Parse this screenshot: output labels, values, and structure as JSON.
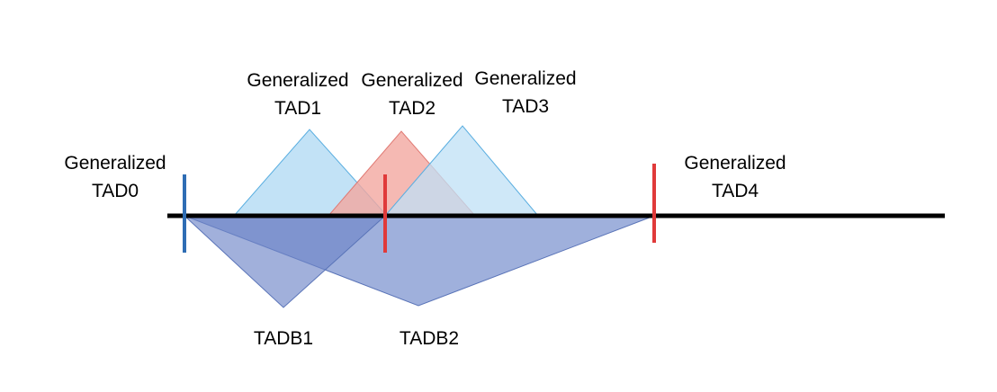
{
  "labels": {
    "tad0_line1": "Generalized",
    "tad0_line2": "TAD0",
    "tad1_line1": "Generalized",
    "tad1_line2": "TAD1",
    "tad2_line1": "Generalized",
    "tad2_line2": "TAD2",
    "tad3_line1": "Generalized",
    "tad3_line2": "TAD3",
    "tad4_line1": "Generalized",
    "tad4_line2": "TAD4",
    "tadb1": "TADB1",
    "tadb2": "TADB2"
  },
  "colors": {
    "axis": "#000000",
    "blue_marker": "#2e6db4",
    "red_marker": "#e03a3a",
    "light_blue_triangle": "#bfe0f6",
    "light_blue_stroke": "#5aaee0",
    "salmon_triangle": "#f3a7a0",
    "boundary_triangle": "#8ea2d6",
    "boundary_stroke": "#5a74b8"
  }
}
